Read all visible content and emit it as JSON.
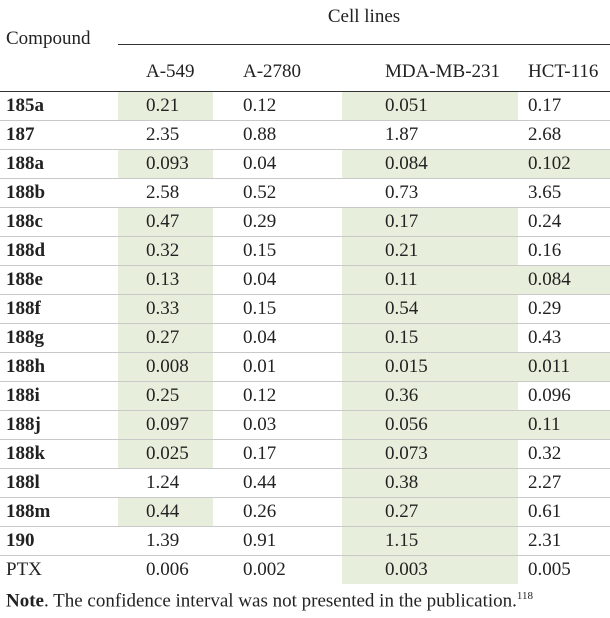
{
  "header": {
    "group": "Cell lines",
    "compound": "Compound",
    "columns": [
      "A-549",
      "A-2780",
      "MDA-MB-231",
      "HCT-116"
    ]
  },
  "highlight_color": "#e8eedc",
  "rows": [
    {
      "compound": "185a",
      "values": [
        "0.21",
        "0.12",
        "0.051",
        "0.17"
      ],
      "hl": [
        true,
        false,
        true,
        false
      ],
      "bold": true
    },
    {
      "compound": "187",
      "values": [
        "2.35",
        "0.88",
        "1.87",
        "2.68"
      ],
      "hl": [
        false,
        false,
        false,
        false
      ],
      "bold": true
    },
    {
      "compound": "188a",
      "values": [
        "0.093",
        "0.04",
        "0.084",
        "0.102"
      ],
      "hl": [
        true,
        false,
        true,
        true
      ],
      "bold": true
    },
    {
      "compound": "188b",
      "values": [
        "2.58",
        "0.52",
        "0.73",
        "3.65"
      ],
      "hl": [
        false,
        false,
        false,
        false
      ],
      "bold": true
    },
    {
      "compound": "188c",
      "values": [
        "0.47",
        "0.29",
        "0.17",
        "0.24"
      ],
      "hl": [
        true,
        false,
        true,
        false
      ],
      "bold": true
    },
    {
      "compound": "188d",
      "values": [
        "0.32",
        "0.15",
        "0.21",
        "0.16"
      ],
      "hl": [
        true,
        false,
        true,
        false
      ],
      "bold": true
    },
    {
      "compound": "188e",
      "values": [
        "0.13",
        "0.04",
        "0.11",
        "0.084"
      ],
      "hl": [
        true,
        false,
        true,
        true
      ],
      "bold": true
    },
    {
      "compound": "188f",
      "values": [
        "0.33",
        "0.15",
        "0.54",
        "0.29"
      ],
      "hl": [
        true,
        false,
        true,
        false
      ],
      "bold": true
    },
    {
      "compound": "188g",
      "values": [
        "0.27",
        "0.04",
        "0.15",
        "0.43"
      ],
      "hl": [
        true,
        false,
        true,
        false
      ],
      "bold": true
    },
    {
      "compound": "188h",
      "values": [
        "0.008",
        "0.01",
        "0.015",
        "0.011"
      ],
      "hl": [
        true,
        false,
        true,
        true
      ],
      "bold": true
    },
    {
      "compound": "188i",
      "values": [
        "0.25",
        "0.12",
        "0.36",
        "0.096"
      ],
      "hl": [
        true,
        false,
        true,
        false
      ],
      "bold": true
    },
    {
      "compound": "188j",
      "values": [
        "0.097",
        "0.03",
        "0.056",
        "0.11"
      ],
      "hl": [
        true,
        false,
        true,
        true
      ],
      "bold": true
    },
    {
      "compound": "188k",
      "values": [
        "0.025",
        "0.17",
        "0.073",
        "0.32"
      ],
      "hl": [
        true,
        false,
        true,
        false
      ],
      "bold": true
    },
    {
      "compound": "188l",
      "values": [
        "1.24",
        "0.44",
        "0.38",
        "2.27"
      ],
      "hl": [
        false,
        false,
        true,
        false
      ],
      "bold": true
    },
    {
      "compound": "188m",
      "values": [
        "0.44",
        "0.26",
        "0.27",
        "0.61"
      ],
      "hl": [
        true,
        false,
        true,
        false
      ],
      "bold": true
    },
    {
      "compound": "190",
      "values": [
        "1.39",
        "0.91",
        "1.15",
        "2.31"
      ],
      "hl": [
        false,
        false,
        true,
        false
      ],
      "bold": true
    },
    {
      "compound": "PTX",
      "values": [
        "0.006",
        "0.002",
        "0.003",
        "0.005"
      ],
      "hl": [
        false,
        false,
        true,
        false
      ],
      "bold": false
    }
  ],
  "note": {
    "label": "Note",
    "text": ". The confidence interval was not presented in the publication.",
    "ref": "118"
  }
}
